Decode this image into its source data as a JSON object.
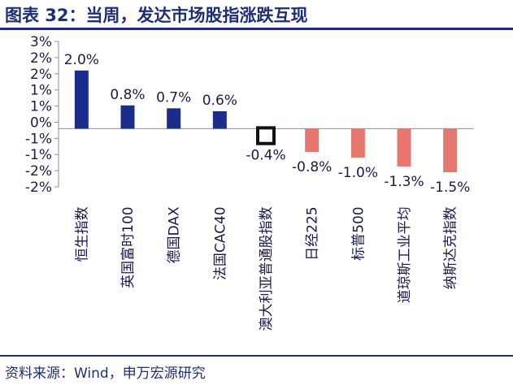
{
  "header": {
    "title": "图表 32：当周，发达市场股指涨跌互现"
  },
  "footer": {
    "source": "资料来源：Wind，申万宏源研究"
  },
  "colors": {
    "positive": "#1a2c8c",
    "negative": "#e8776f",
    "title": "#1f2f73",
    "text": "#1a1a4a"
  },
  "chart_data": {
    "type": "bar",
    "categories": [
      "恒生指数",
      "英国富时100",
      "德国DAX",
      "法国CAC40",
      "澳大利亚普通股指数",
      "日经225",
      "标普500",
      "道琼斯工业平均",
      "纳斯达克指数"
    ],
    "values": [
      2.0,
      0.8,
      0.7,
      0.6,
      -0.4,
      -0.8,
      -1.0,
      -1.3,
      -1.5
    ],
    "data_labels": [
      "2.0%",
      "0.8%",
      "0.7%",
      "0.6%",
      "-0.4%",
      "-0.8%",
      "-1.0%",
      "-1.3%",
      "-1.5%"
    ],
    "yticks": [
      "3%",
      "2%",
      "2%",
      "1%",
      "1%",
      "0%",
      "-1%",
      "-1%",
      "-2%",
      "-2%"
    ],
    "ylim": [
      -2.0,
      3.0
    ],
    "grid": false,
    "legend": "none",
    "title": "",
    "xlabel": "",
    "ylabel": ""
  }
}
